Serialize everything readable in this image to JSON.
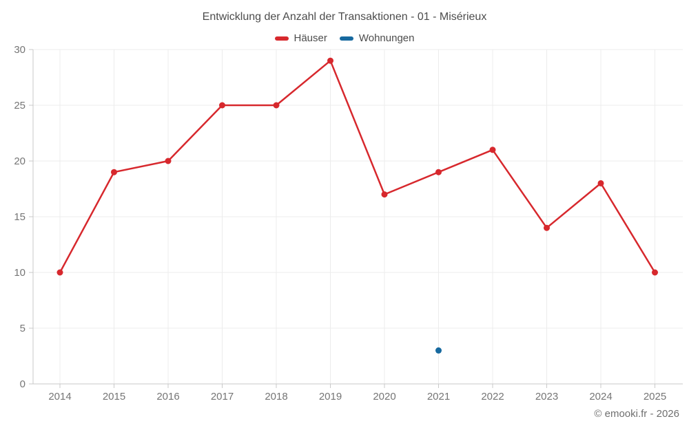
{
  "title": "Entwicklung der Anzahl der Transaktionen - 01 - Misérieux",
  "attribution": "© emooki.fr - 2026",
  "chart_data": {
    "type": "line",
    "title": "Entwicklung der Anzahl der Transaktionen - 01 - Misérieux",
    "x": [
      2014,
      2015,
      2016,
      2017,
      2018,
      2019,
      2020,
      2021,
      2022,
      2023,
      2024,
      2025
    ],
    "series": [
      {
        "name": "Häuser",
        "color": "#d7282d",
        "values": [
          10,
          19,
          20,
          25,
          25,
          29,
          17,
          19,
          21,
          14,
          18,
          10
        ]
      },
      {
        "name": "Wohnungen",
        "color": "#17699f",
        "values": [
          null,
          null,
          null,
          null,
          null,
          null,
          null,
          3,
          null,
          null,
          null,
          null
        ]
      }
    ],
    "ylim": [
      0,
      30
    ],
    "yticks": [
      0,
      5,
      10,
      15,
      20,
      25,
      30
    ],
    "grid": true,
    "grid_color": "#ececec",
    "axis_color": "#c9c9c9",
    "tick_label_color": "#757575",
    "legend_position": "top",
    "xlabel": "",
    "ylabel": ""
  }
}
